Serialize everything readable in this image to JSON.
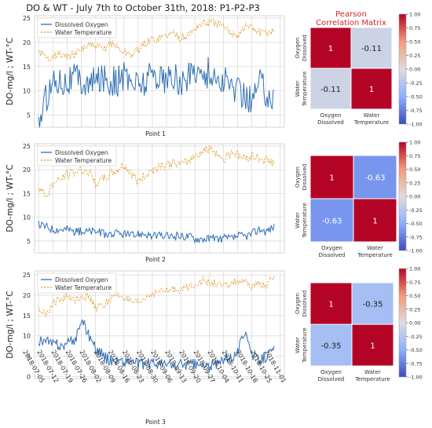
{
  "title": "DO & WT - July 7th to October 31th, 2018: P1-P2-P3",
  "colors": {
    "do": "#2f6fb5",
    "wt": "#e3a33a",
    "plot_bg": "#ffffff",
    "grid": "#d6d6d6",
    "heat_low": "#3b4cc0",
    "heat_mid": "#dddddd",
    "heat_high": "#b40426",
    "title_red": "#d62728"
  },
  "chart_data": [
    {
      "type": "line",
      "xlabel": "Point 1",
      "ylabel": "DO-mg/l ; WT-°C",
      "xlim": [
        "2018-07-03",
        "2018-11-03"
      ],
      "ylim": [
        2.5,
        25.5
      ],
      "yticks": [
        5,
        10,
        15,
        20,
        25
      ],
      "legend": "top-left",
      "series": [
        {
          "name": "Dissolved Oxygen",
          "x": [
            "2018-07-05",
            "2018-07-09",
            "2018-07-12",
            "2018-07-16",
            "2018-07-19",
            "2018-07-23",
            "2018-07-26",
            "2018-07-30",
            "2018-08-02",
            "2018-08-06",
            "2018-08-09",
            "2018-08-13",
            "2018-08-16",
            "2018-08-20",
            "2018-08-23",
            "2018-08-27",
            "2018-08-30",
            "2018-09-03",
            "2018-09-06",
            "2018-09-10",
            "2018-09-13",
            "2018-09-17",
            "2018-09-20",
            "2018-09-24",
            "2018-09-27",
            "2018-10-01",
            "2018-10-04",
            "2018-10-08",
            "2018-10-11",
            "2018-10-15",
            "2018-10-18",
            "2018-10-22",
            "2018-10-25",
            "2018-10-29"
          ],
          "values": [
            3.5,
            9,
            12,
            12.5,
            12,
            13,
            12,
            11,
            12,
            13,
            12,
            12,
            13,
            12,
            11.5,
            12,
            14,
            13,
            12,
            13,
            11,
            13,
            15,
            13,
            14,
            12,
            12,
            11,
            10,
            9,
            8,
            12,
            10,
            8
          ]
        },
        {
          "name": "Water Temperature",
          "x": [
            "2018-07-05",
            "2018-07-09",
            "2018-07-12",
            "2018-07-16",
            "2018-07-19",
            "2018-07-23",
            "2018-07-26",
            "2018-07-30",
            "2018-08-02",
            "2018-08-06",
            "2018-08-09",
            "2018-08-13",
            "2018-08-16",
            "2018-08-20",
            "2018-08-23",
            "2018-08-27",
            "2018-08-30",
            "2018-09-03",
            "2018-09-06",
            "2018-09-10",
            "2018-09-13",
            "2018-09-17",
            "2018-09-20",
            "2018-09-24",
            "2018-09-27",
            "2018-10-01",
            "2018-10-04",
            "2018-10-08",
            "2018-10-11",
            "2018-10-15",
            "2018-10-18",
            "2018-10-22",
            "2018-10-25",
            "2018-10-29"
          ],
          "values": [
            18.5,
            16.5,
            17.5,
            17.5,
            17,
            17.5,
            18.5,
            19.5,
            19,
            18.5,
            20,
            19,
            18,
            17.5,
            18.5,
            20,
            20.5,
            21,
            21.5,
            22,
            21,
            21.5,
            23,
            24,
            24,
            24,
            23,
            22,
            21.5,
            23.5,
            23,
            22,
            22,
            22.5
          ]
        }
      ]
    },
    {
      "type": "line",
      "xlabel": "Point 2",
      "ylabel": "DO-mg/l ; WT-°C",
      "xlim": [
        "2018-07-03",
        "2018-11-03"
      ],
      "ylim": [
        2.5,
        25.5
      ],
      "yticks": [
        5,
        10,
        15,
        20,
        25
      ],
      "legend": "top-left",
      "series": [
        {
          "name": "Dissolved Oxygen",
          "x": [
            "2018-07-05",
            "2018-07-09",
            "2018-07-12",
            "2018-07-16",
            "2018-07-19",
            "2018-07-23",
            "2018-07-26",
            "2018-07-30",
            "2018-08-02",
            "2018-08-06",
            "2018-08-09",
            "2018-08-13",
            "2018-08-16",
            "2018-08-20",
            "2018-08-23",
            "2018-08-27",
            "2018-08-30",
            "2018-09-03",
            "2018-09-06",
            "2018-09-10",
            "2018-09-13",
            "2018-09-17",
            "2018-09-20",
            "2018-09-24",
            "2018-09-27",
            "2018-10-01",
            "2018-10-04",
            "2018-10-08",
            "2018-10-11",
            "2018-10-15",
            "2018-10-18",
            "2018-10-22",
            "2018-10-25",
            "2018-10-29"
          ],
          "values": [
            8.5,
            8,
            7.5,
            7.5,
            7.5,
            7,
            7,
            7,
            7,
            6.5,
            6.5,
            6.5,
            6.5,
            6,
            6.5,
            6.5,
            6,
            6,
            6,
            6,
            6,
            6,
            5.5,
            5.5,
            5.5,
            5.5,
            5.5,
            5.5,
            6,
            6,
            6.5,
            7.5,
            7,
            8
          ]
        },
        {
          "name": "Water Temperature",
          "x": [
            "2018-07-05",
            "2018-07-09",
            "2018-07-12",
            "2018-07-16",
            "2018-07-19",
            "2018-07-23",
            "2018-07-26",
            "2018-07-30",
            "2018-08-02",
            "2018-08-06",
            "2018-08-09",
            "2018-08-13",
            "2018-08-16",
            "2018-08-20",
            "2018-08-23",
            "2018-08-27",
            "2018-08-30",
            "2018-09-03",
            "2018-09-06",
            "2018-09-10",
            "2018-09-13",
            "2018-09-17",
            "2018-09-20",
            "2018-09-24",
            "2018-09-27",
            "2018-10-01",
            "2018-10-04",
            "2018-10-08",
            "2018-10-11",
            "2018-10-15",
            "2018-10-18",
            "2018-10-22",
            "2018-10-25",
            "2018-10-29"
          ],
          "values": [
            16,
            14.5,
            17,
            18,
            19,
            19.5,
            20,
            19.5,
            17,
            18,
            19,
            20,
            21,
            19,
            17.5,
            19,
            20,
            21,
            21,
            21.5,
            21,
            22,
            23,
            24,
            24.5,
            23.5,
            22,
            24,
            23,
            22.5,
            23,
            22.5,
            22,
            21.5
          ]
        }
      ]
    },
    {
      "type": "line",
      "xlabel": "Point 3",
      "ylabel": "DO-mg/l ; WT-°C",
      "xlim": [
        "2018-07-03",
        "2018-11-03"
      ],
      "ylim": [
        -0.5,
        26
      ],
      "yticks": [
        0,
        5,
        10,
        15,
        20,
        25
      ],
      "xticks": [
        "2018-07-05",
        "2018-07-12",
        "2018-07-19",
        "2018-07-26",
        "2018-08-02",
        "2018-08-09",
        "2018-08-16",
        "2018-08-23",
        "2018-08-30",
        "2018-09-06",
        "2018-09-13",
        "2018-09-20",
        "2018-09-27",
        "2018-10-04",
        "2018-10-11",
        "2018-10-18",
        "2018-10-25",
        "2018-11-01"
      ],
      "legend": "top-left",
      "series": [
        {
          "name": "Dissolved Oxygen",
          "x": [
            "2018-07-05",
            "2018-07-09",
            "2018-07-12",
            "2018-07-16",
            "2018-07-19",
            "2018-07-23",
            "2018-07-26",
            "2018-07-30",
            "2018-08-02",
            "2018-08-06",
            "2018-08-09",
            "2018-08-13",
            "2018-08-16",
            "2018-08-20",
            "2018-08-23",
            "2018-08-27",
            "2018-08-30",
            "2018-09-03",
            "2018-09-06",
            "2018-09-10",
            "2018-09-13",
            "2018-09-17",
            "2018-09-20",
            "2018-09-24",
            "2018-09-27",
            "2018-10-01",
            "2018-10-04",
            "2018-10-08",
            "2018-10-11",
            "2018-10-15",
            "2018-10-18",
            "2018-10-22",
            "2018-10-25",
            "2018-10-29"
          ],
          "values": [
            9,
            8.5,
            8,
            7.5,
            8,
            9,
            14,
            10,
            7,
            5,
            4,
            4,
            3.5,
            4,
            3,
            3,
            3.5,
            3,
            3,
            2.5,
            3,
            3,
            3,
            2.5,
            2.5,
            3,
            4,
            5,
            6,
            12,
            5,
            4,
            5,
            6.5
          ]
        },
        {
          "name": "Water Temperature",
          "x": [
            "2018-07-05",
            "2018-07-09",
            "2018-07-12",
            "2018-07-16",
            "2018-07-19",
            "2018-07-23",
            "2018-07-26",
            "2018-07-30",
            "2018-08-02",
            "2018-08-06",
            "2018-08-09",
            "2018-08-13",
            "2018-08-16",
            "2018-08-20",
            "2018-08-23",
            "2018-08-27",
            "2018-08-30",
            "2018-09-03",
            "2018-09-06",
            "2018-09-10",
            "2018-09-13",
            "2018-09-17",
            "2018-09-20",
            "2018-09-24",
            "2018-09-27",
            "2018-10-01",
            "2018-10-04",
            "2018-10-08",
            "2018-10-11",
            "2018-10-15",
            "2018-10-18",
            "2018-10-22",
            "2018-10-25",
            "2018-10-29"
          ],
          "values": [
            16.5,
            15.5,
            18,
            19,
            19.5,
            19,
            20,
            19.5,
            17,
            17.5,
            19,
            20,
            19.5,
            18,
            18,
            19.5,
            20.5,
            21,
            21,
            21.5,
            21.5,
            22,
            23,
            23.5,
            23,
            23,
            22,
            23,
            23.5,
            23,
            22,
            23,
            22,
            25
          ]
        }
      ]
    },
    {
      "type": "heatmap",
      "title": "Pearson\nCorrelation Matrix",
      "rows": [
        "Oxygen\nDissolved",
        "Water\nTemperature"
      ],
      "cols": [
        "Oxygen\nDissolved",
        "Water\nTemperature"
      ],
      "values": [
        [
          1,
          -0.11
        ],
        [
          -0.11,
          1
        ]
      ],
      "labels": [
        [
          "1",
          "-0.11"
        ],
        [
          "-0.11",
          "1"
        ]
      ],
      "colorbar_range": [
        -1,
        1
      ],
      "colorbar_ticks": [
        "1.00",
        "0.75",
        "0.50",
        "0.25",
        "0.00",
        "-0.25",
        "-0.50",
        "-0.75",
        "-1.00"
      ]
    },
    {
      "type": "heatmap",
      "rows": [
        "Oxygen\nDissolved",
        "Water\nTemperature"
      ],
      "cols": [
        "Oxygen\nDissolved",
        "Water\nTemperature"
      ],
      "values": [
        [
          1,
          -0.63
        ],
        [
          -0.63,
          1
        ]
      ],
      "labels": [
        [
          "1",
          "-0.63"
        ],
        [
          "-0.63",
          "1"
        ]
      ],
      "colorbar_range": [
        -1,
        1
      ],
      "colorbar_ticks": [
        "1.00",
        "0.75",
        "0.50",
        "0.25",
        "0.00",
        "-0.25",
        "-0.50",
        "-0.75",
        "-1.00"
      ]
    },
    {
      "type": "heatmap",
      "rows": [
        "Oxygen\nDissolved",
        "Water\nTemperature"
      ],
      "cols": [
        "Oxygen\nDissolved",
        "Water\nTemperature"
      ],
      "values": [
        [
          1,
          -0.35
        ],
        [
          -0.35,
          1
        ]
      ],
      "labels": [
        [
          "1",
          "-0.35"
        ],
        [
          "-0.35",
          "1"
        ]
      ],
      "colorbar_range": [
        -1,
        1
      ],
      "colorbar_ticks": [
        "1.00",
        "0.75",
        "0.50",
        "0.25",
        "0.00",
        "-0.25",
        "-0.50",
        "-0.75",
        "-1.00"
      ]
    }
  ]
}
